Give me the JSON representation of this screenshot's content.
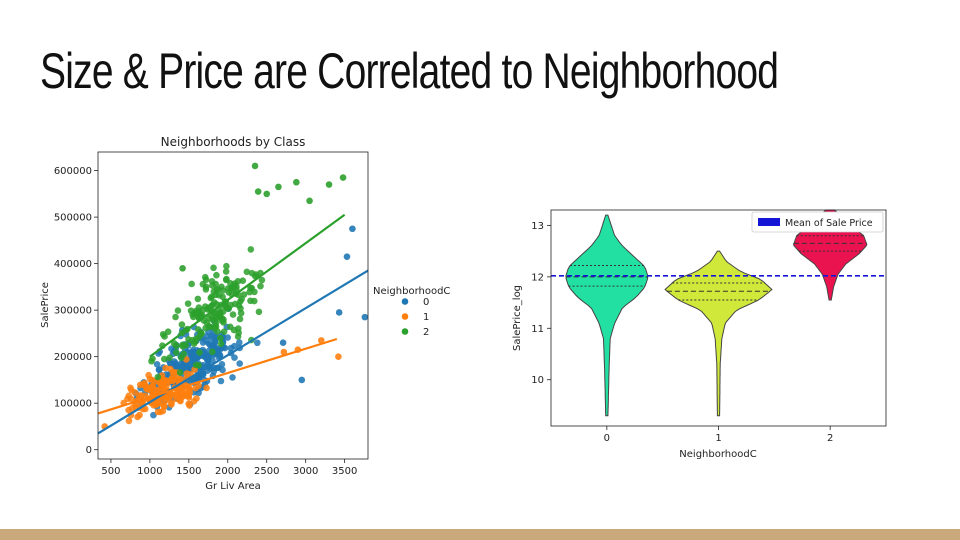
{
  "slide": {
    "title": "Size & Price are Correlated to Neighborhood",
    "footer_color": "#c9a97c"
  },
  "chart_data": [
    {
      "type": "scatter",
      "title": "Neighborhoods by Class",
      "xlabel": "Gr Liv Area",
      "ylabel": "SalePrice",
      "xlim": [
        334,
        3800
      ],
      "ylim": [
        -20000,
        640000
      ],
      "xticks": [
        "500",
        "1000",
        "1500",
        "2000",
        "2500",
        "3000",
        "3500"
      ],
      "yticks": [
        "0",
        "100000",
        "200000",
        "300000",
        "400000",
        "500000",
        "600000"
      ],
      "legend": {
        "title": "NeighborhoodC",
        "placement": "outside-right",
        "labels": [
          "0",
          "1",
          "2"
        ]
      },
      "series": [
        {
          "name": "0",
          "color": "#1f77b4",
          "regression": {
            "x": [
              334,
              3800
            ],
            "y": [
              35000,
              385000
            ]
          },
          "cluster": {
            "x_mean": 1500,
            "x_sd": 450,
            "slope": 95,
            "intercept": 35000,
            "noise": 45000,
            "n": 260
          },
          "outliers": [
            {
              "x": 3600,
              "y": 475000
            },
            {
              "x": 3760,
              "y": 285000
            },
            {
              "x": 3530,
              "y": 415000
            },
            {
              "x": 3430,
              "y": 295000
            },
            {
              "x": 2950,
              "y": 150000
            },
            {
              "x": 2710,
              "y": 230000
            }
          ]
        },
        {
          "name": "1",
          "color": "#ff7f0e",
          "regression": {
            "x": [
              334,
              3400
            ],
            "y": [
              78000,
              238000
            ]
          },
          "cluster": {
            "x_mean": 1150,
            "x_sd": 320,
            "slope": 58,
            "intercept": 58000,
            "noise": 28000,
            "n": 180
          },
          "outliers": [
            {
              "x": 3200,
              "y": 235000
            },
            {
              "x": 3420,
              "y": 200000
            },
            {
              "x": 2720,
              "y": 210000
            },
            {
              "x": 2900,
              "y": 215000
            },
            {
              "x": 420,
              "y": 50000
            }
          ]
        },
        {
          "name": "2",
          "color": "#2ca02c",
          "regression": {
            "x": [
              1000,
              3500
            ],
            "y": [
              200000,
              505000
            ]
          },
          "cluster": {
            "x_mean": 1850,
            "x_sd": 430,
            "slope": 122,
            "intercept": 78000,
            "noise": 55000,
            "n": 170
          },
          "outliers": [
            {
              "x": 2350,
              "y": 610000
            },
            {
              "x": 3480,
              "y": 585000
            },
            {
              "x": 3300,
              "y": 570000
            },
            {
              "x": 2390,
              "y": 555000
            },
            {
              "x": 2500,
              "y": 550000
            },
            {
              "x": 2880,
              "y": 575000
            },
            {
              "x": 3050,
              "y": 535000
            },
            {
              "x": 2650,
              "y": 565000
            },
            {
              "x": 1420,
              "y": 390000
            }
          ]
        }
      ]
    },
    {
      "type": "violin",
      "xlabel": "NeighborhoodC",
      "ylabel": "SalePrice_log",
      "categories": [
        "0",
        "1",
        "2"
      ],
      "xlim": [
        -0.5,
        2.5
      ],
      "ylim": [
        9.1,
        13.3
      ],
      "yticks": [
        "10",
        "11",
        "12",
        "13"
      ],
      "mean_line": {
        "value": 12.02,
        "label": "Mean of Sale Price",
        "color": "#1515d6",
        "legend_placement": "top-right"
      },
      "violins": [
        {
          "category": "0",
          "color": "#22e0a2",
          "min": 9.3,
          "max": 13.2,
          "q1": 11.82,
          "median": 12.0,
          "q3": 12.22,
          "profile": [
            [
              9.3,
              0.01
            ],
            [
              10.2,
              0.02
            ],
            [
              10.8,
              0.03
            ],
            [
              11.1,
              0.07
            ],
            [
              11.4,
              0.14
            ],
            [
              11.6,
              0.26
            ],
            [
              11.8,
              0.34
            ],
            [
              12.0,
              0.37
            ],
            [
              12.2,
              0.34
            ],
            [
              12.4,
              0.24
            ],
            [
              12.6,
              0.14
            ],
            [
              12.8,
              0.07
            ],
            [
              13.0,
              0.04
            ],
            [
              13.2,
              0.01
            ]
          ]
        },
        {
          "category": "1",
          "color": "#cfe83a",
          "min": 9.3,
          "max": 12.5,
          "q1": 11.55,
          "median": 11.72,
          "q3": 11.88,
          "profile": [
            [
              9.3,
              0.01
            ],
            [
              10.3,
              0.015
            ],
            [
              10.8,
              0.03
            ],
            [
              11.1,
              0.06
            ],
            [
              11.35,
              0.16
            ],
            [
              11.55,
              0.36
            ],
            [
              11.75,
              0.48
            ],
            [
              11.95,
              0.38
            ],
            [
              12.1,
              0.2
            ],
            [
              12.3,
              0.07
            ],
            [
              12.5,
              0.01
            ]
          ]
        },
        {
          "category": "2",
          "color": "#ea1350",
          "min": 11.55,
          "max": 13.3,
          "q1": 12.5,
          "median": 12.65,
          "q3": 12.8,
          "profile": [
            [
              11.55,
              0.01
            ],
            [
              11.8,
              0.03
            ],
            [
              12.05,
              0.07
            ],
            [
              12.25,
              0.14
            ],
            [
              12.45,
              0.26
            ],
            [
              12.62,
              0.33
            ],
            [
              12.8,
              0.3
            ],
            [
              13.0,
              0.19
            ],
            [
              13.15,
              0.11
            ],
            [
              13.3,
              0.04
            ]
          ]
        }
      ]
    }
  ]
}
